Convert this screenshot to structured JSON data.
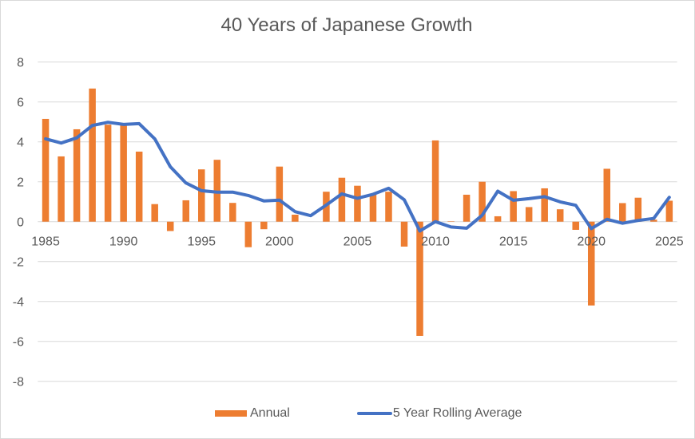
{
  "chart_data": {
    "type": "bar+line",
    "title": "40 Years of Japanese Growth",
    "xlabel": "",
    "ylabel": "",
    "ylim": [
      -8,
      8
    ],
    "yticks": [
      "8",
      "6",
      "4",
      "2",
      "0",
      "-2",
      "-4",
      "-6",
      "-8"
    ],
    "ytick_values": [
      8,
      6,
      4,
      2,
      0,
      -2,
      -4,
      -6,
      -8
    ],
    "xtick_labels": [
      "1985",
      "1990",
      "1995",
      "2000",
      "2005",
      "2010",
      "2015",
      "2020",
      "2025"
    ],
    "grid": true,
    "legend_position": "bottom",
    "categories": [
      1985,
      1986,
      1987,
      1988,
      1989,
      1990,
      1991,
      1992,
      1993,
      1994,
      1995,
      1996,
      1997,
      1998,
      1999,
      2000,
      2001,
      2002,
      2003,
      2004,
      2005,
      2006,
      2007,
      2008,
      2009,
      2010,
      2011,
      2012,
      2013,
      2014,
      2015,
      2016,
      2017,
      2018,
      2019,
      2020,
      2021,
      2022,
      2023,
      2024,
      2025
    ],
    "series": [
      {
        "name": "Annual",
        "type": "bar",
        "color": "#ed7d31",
        "values": [
          5.15,
          3.27,
          4.63,
          6.67,
          4.86,
          4.84,
          3.51,
          0.88,
          -0.47,
          1.07,
          2.62,
          3.1,
          0.94,
          -1.28,
          -0.38,
          2.76,
          0.35,
          0.0,
          1.5,
          2.2,
          1.8,
          1.37,
          1.5,
          -1.25,
          -5.73,
          4.07,
          0.02,
          1.35,
          2.0,
          0.27,
          1.53,
          0.73,
          1.67,
          0.62,
          -0.41,
          -4.2,
          2.65,
          0.93,
          1.2,
          0.1,
          1.05
        ]
      },
      {
        "name": "5 Year Rolling Average",
        "type": "line",
        "color": "#4472c4",
        "values": [
          4.15,
          3.94,
          4.2,
          4.82,
          4.98,
          4.87,
          4.91,
          4.15,
          2.75,
          1.94,
          1.55,
          1.48,
          1.48,
          1.31,
          1.04,
          1.08,
          0.5,
          0.3,
          0.83,
          1.39,
          1.17,
          1.37,
          1.67,
          1.1,
          -0.47,
          0.0,
          -0.27,
          -0.33,
          0.32,
          1.53,
          1.07,
          1.15,
          1.25,
          0.99,
          0.82,
          -0.35,
          0.12,
          -0.08,
          0.06,
          0.16,
          1.22
        ]
      }
    ]
  },
  "legend": {
    "items": [
      {
        "label": "Annual",
        "color": "#ed7d31"
      },
      {
        "label": "5 Year Rolling Average",
        "color": "#4472c4"
      }
    ]
  }
}
